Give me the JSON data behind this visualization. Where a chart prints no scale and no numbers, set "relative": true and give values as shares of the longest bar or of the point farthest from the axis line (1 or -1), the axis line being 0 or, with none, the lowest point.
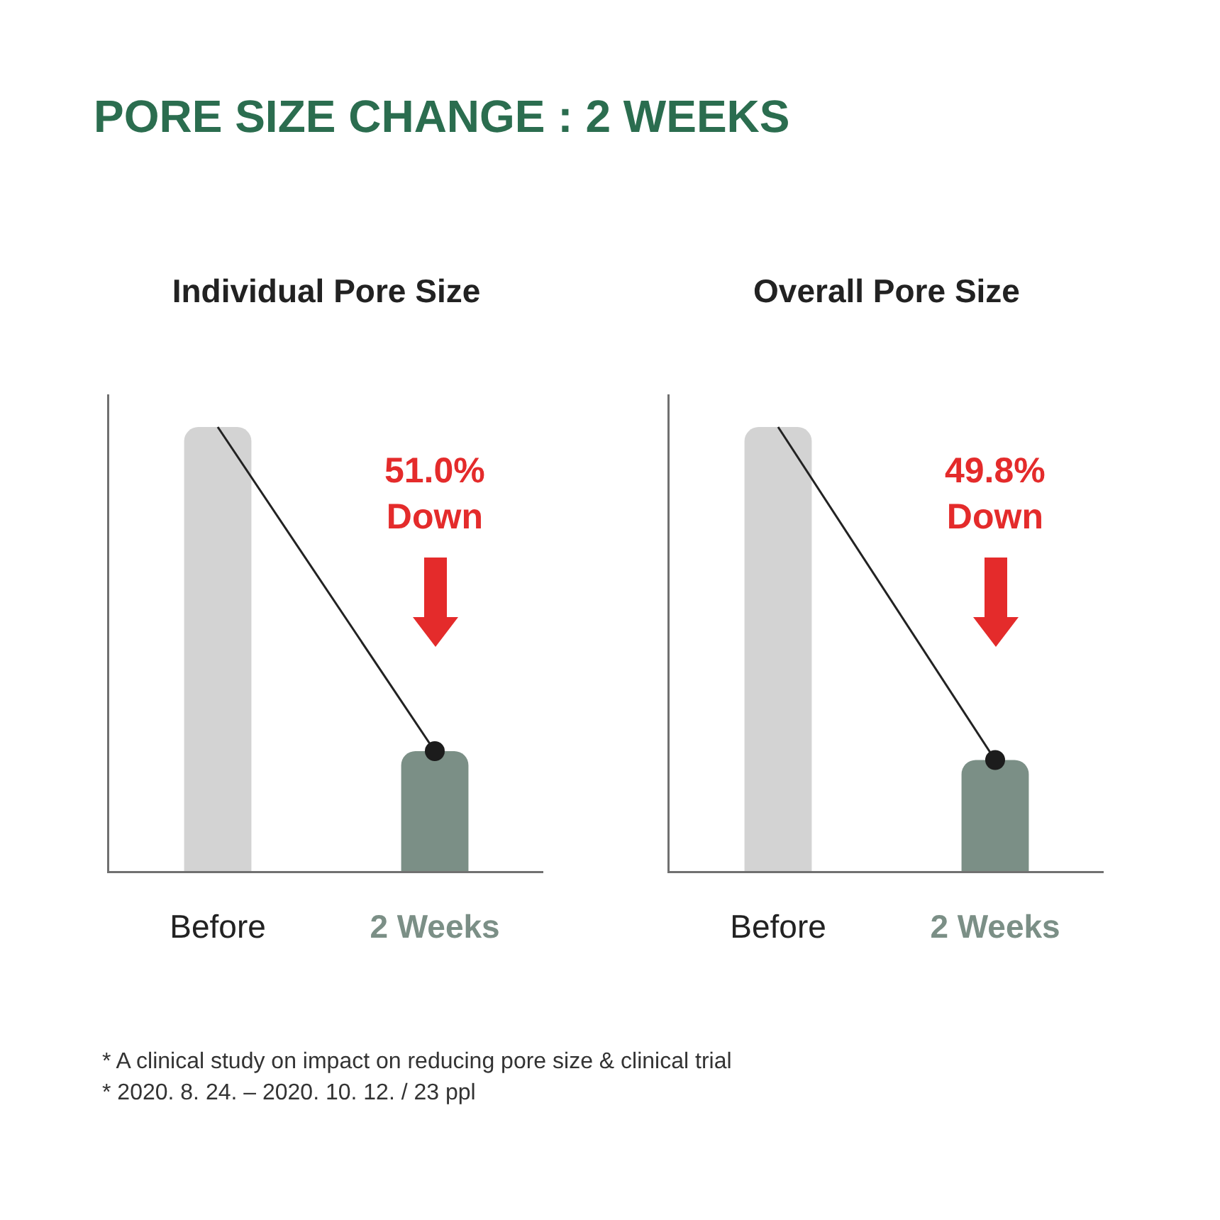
{
  "chart_data": [
    {
      "type": "other",
      "title": "PORE SIZE CHANGE : 2 WEEKS"
    },
    {
      "type": "bar",
      "title": "Individual Pore Size",
      "categories": [
        "Before",
        "2 Weeks"
      ],
      "relative": true,
      "series": [
        {
          "type": "bar",
          "colors": [
            "#d3d3d3",
            "#7b8f86"
          ],
          "values": [
            1,
            0.27
          ]
        },
        {
          "type": "line",
          "color": "#222222",
          "values": [
            1,
            0.27
          ]
        },
        {
          "type": "scatter",
          "color": "#1c1c1c",
          "marker": "circle",
          "values": [
            null,
            0.27
          ]
        }
      ],
      "annotations": [
        "51.0%\nDown"
      ]
    },
    {
      "type": "bar",
      "title": "Overall Pore Size",
      "categories": [
        "Before",
        "2 Weeks"
      ],
      "relative": true,
      "series": [
        {
          "type": "bar",
          "colors": [
            "#d3d3d3",
            "#7b8f86"
          ],
          "values": [
            1,
            0.25
          ]
        },
        {
          "type": "line",
          "color": "#222222",
          "values": [
            1,
            0.25
          ]
        },
        {
          "type": "scatter",
          "color": "#1c1c1c",
          "marker": "circle",
          "values": [
            null,
            0.25
          ]
        }
      ],
      "annotations": [
        "49.8%\nDown"
      ]
    },
    {
      "type": "other",
      "annotations": [
        "* A clinical study on impact on reducing pore size & clinical trial",
        "* 2020. 8. 24. – 2020. 10. 12. / 23 ppl"
      ]
    }
  ]
}
